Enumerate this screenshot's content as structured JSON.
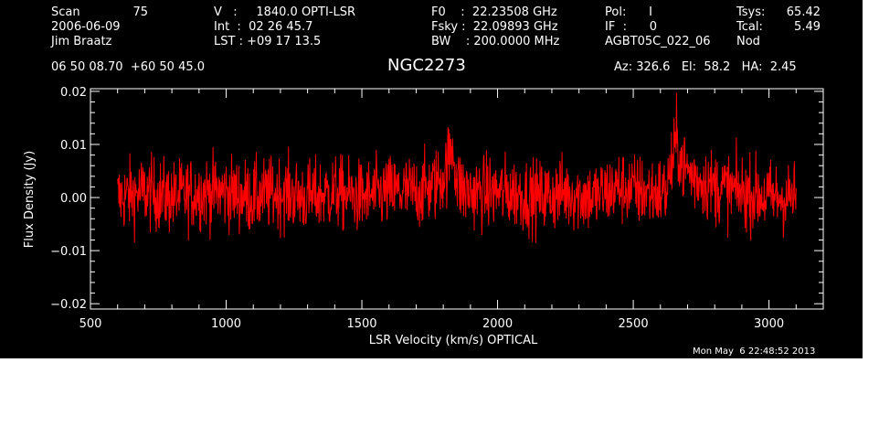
{
  "header": {
    "scan_label": "Scan",
    "scan_value": "75",
    "date": "2006-06-09",
    "observer": "Jim Braatz",
    "position": "06 50 08.70  +60 50 45.0",
    "velocity": "V   :     1840.0 OPTI-LSR",
    "integration": "Int  :  02 26 45.7",
    "lst": "LST : +09 17 13.5",
    "f0": "F0    :  22.23508 GHz",
    "fsky": "Fsky :  22.09893 GHz",
    "bw": "BW    : 200.0000 MHz",
    "pol": "Pol:      I",
    "if": "IF  :      0",
    "project": "AGBT05C_022_06",
    "tsys_label": "Tsys:",
    "tsys_value": "65.42",
    "tcal_label": "Tcal:",
    "tcal_value": "5.49",
    "mode": "Nod",
    "source": "NGC2273",
    "pointing": "Az: 326.6   El:  58.2   HA:  2.45",
    "timestamp": "Mon May  6 22:48:52 2013"
  },
  "colors": {
    "background": "#000000",
    "foreground": "#ffffff",
    "spectrum": "#ff0000"
  },
  "chart_data": {
    "type": "line",
    "xlabel": "LSR Velocity (km/s) OPTICAL",
    "ylabel": "Flux Density (Jy)",
    "xlim": [
      500,
      3200
    ],
    "ylim": [
      -0.021,
      0.0205
    ],
    "x_ticks": [
      500,
      1000,
      1500,
      2000,
      2500,
      3000
    ],
    "x_tick_labels": [
      "500",
      "1000",
      "1500",
      "2000",
      "2500",
      "3000"
    ],
    "y_ticks": [
      -0.02,
      -0.01,
      0.0,
      0.01,
      0.02
    ],
    "y_tick_labels": [
      "−0.02",
      "−0.01",
      "0.00",
      "0.01",
      "0.02"
    ],
    "grid": false,
    "series": [
      {
        "x": [
          600,
          700,
          800,
          900,
          1000,
          1100,
          1200,
          1300,
          1400,
          1500,
          1600,
          1700,
          1760,
          1800,
          1820,
          1835,
          1850,
          1880,
          1950,
          2050,
          2150,
          2250,
          2350,
          2450,
          2550,
          2620,
          2650,
          2660,
          2680,
          2720,
          2800,
          2900,
          3000,
          3100
        ],
        "y": [
          0.0,
          0.001,
          0.0,
          0.001,
          0.001,
          0.0,
          0.001,
          0.0,
          0.001,
          0.0,
          0.001,
          0.001,
          0.002,
          0.004,
          0.007,
          0.01,
          0.003,
          0.001,
          0.001,
          0.001,
          0.0,
          0.001,
          0.0,
          0.002,
          0.001,
          0.001,
          0.008,
          0.011,
          0.006,
          0.004,
          0.002,
          0.001,
          0.0,
          0.0
        ],
        "noise_rms": 0.0035
      }
    ]
  }
}
